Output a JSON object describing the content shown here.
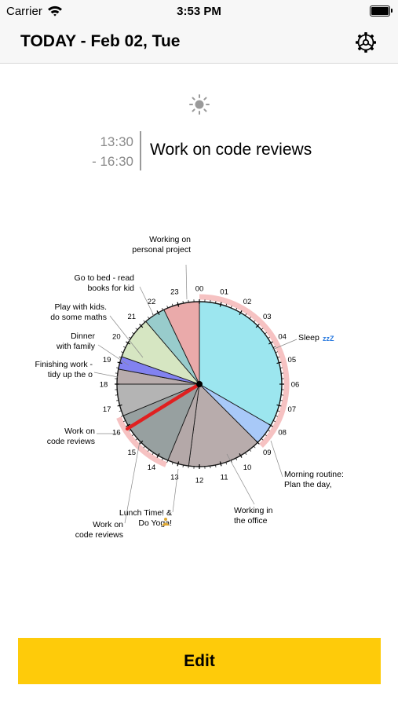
{
  "status_bar": {
    "carrier": "Carrier",
    "time": "3:53 PM"
  },
  "nav": {
    "title": "TODAY - Feb 02, Tue"
  },
  "current": {
    "start": "13:30",
    "end": "- 16:30",
    "title": "Work on code reviews"
  },
  "clock": {
    "hour_labels": [
      "00",
      "01",
      "02",
      "03",
      "04",
      "05",
      "06",
      "07",
      "08",
      "09",
      "10",
      "11",
      "12",
      "13",
      "14",
      "15",
      "16",
      "17",
      "18",
      "19",
      "20",
      "21",
      "22",
      "23"
    ],
    "current_time": "15:53",
    "segments": [
      {
        "start": 0,
        "end": 8,
        "color": "#9ce6ef"
      },
      {
        "start": 8,
        "end": 9,
        "color": "#a8c9f8"
      },
      {
        "start": 9,
        "end": 12.5,
        "color": "#b8acac"
      },
      {
        "start": 12.5,
        "end": 13.5,
        "color": "#b4a8a8"
      },
      {
        "start": 13.5,
        "end": 16.5,
        "color": "#97a0a0"
      },
      {
        "start": 16.5,
        "end": 18,
        "color": "#b4b4b4"
      },
      {
        "start": 18,
        "end": 18.7,
        "color": "#b8acac"
      },
      {
        "start": 18.7,
        "end": 19.3,
        "color": "#8282f0"
      },
      {
        "start": 19.3,
        "end": 21.3,
        "color": "#d6e6c2"
      },
      {
        "start": 21.3,
        "end": 22.3,
        "color": "#98cccc"
      },
      {
        "start": 22.3,
        "end": 24,
        "color": "#eaaaaa"
      }
    ],
    "annotations": [
      {
        "lines": [
          "Working on",
          "personal project"
        ]
      },
      {
        "lines": [
          "Go to bed - read",
          "books for kid"
        ]
      },
      {
        "lines": [
          "Play with kids.",
          "do some maths"
        ]
      },
      {
        "lines": [
          "Dinner",
          "with family"
        ]
      },
      {
        "lines": [
          "Finishing work -",
          "tidy up the o"
        ]
      },
      {
        "lines": [
          "Work on",
          "code reviews"
        ]
      },
      {
        "lines": [
          "Sleep"
        ]
      },
      {
        "lines": [
          "Morning routine:",
          "Plan the day,"
        ]
      },
      {
        "lines": [
          "Working in",
          "the office"
        ]
      },
      {
        "lines": [
          "Lunch Time! &",
          "Do Yoga!"
        ]
      },
      {
        "lines": [
          "Work on",
          "code reviews"
        ]
      }
    ]
  },
  "edit_button": {
    "label": "Edit"
  }
}
